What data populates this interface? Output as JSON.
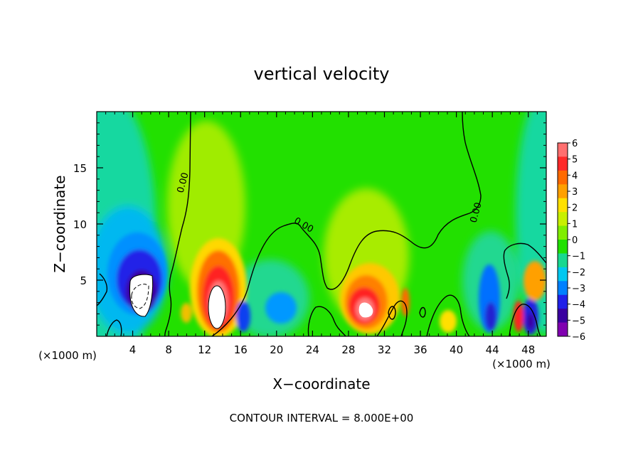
{
  "chart_data": {
    "type": "heatmap",
    "title": "vertical velocity",
    "xlabel": "X−coordinate",
    "ylabel": "Z−coordinate",
    "x_unit": "(×1000 m)",
    "xlim": [
      0,
      50
    ],
    "ylim": [
      0,
      20
    ],
    "x_ticks": [
      4,
      8,
      12,
      16,
      20,
      24,
      28,
      32,
      36,
      40,
      44,
      48
    ],
    "x_tick_labels": [
      "4",
      "8",
      "12",
      "16",
      "20",
      "24",
      "28",
      "32",
      "36",
      "40",
      "44",
      "48"
    ],
    "y_ticks": [
      5,
      10,
      15
    ],
    "y_tick_labels": [
      "5",
      "10",
      "15"
    ],
    "colorbar": {
      "levels": [
        6,
        5,
        4,
        3,
        2,
        1,
        0,
        -1,
        -2,
        -3,
        -4,
        -5,
        -6
      ],
      "labels": [
        "6",
        "5",
        "4",
        "3",
        "2",
        "1",
        "0",
        "−1",
        "−2",
        "−3",
        "−4",
        "−5",
        "−6"
      ],
      "colors": [
        "#ff6f6f",
        "#ff2a2a",
        "#ff6a00",
        "#ffa000",
        "#ffe000",
        "#c8f000",
        "#80ee00",
        "#20e000",
        "#18d890",
        "#00c8f0",
        "#0080ff",
        "#2020e8",
        "#3a00a0",
        "#8000b0"
      ]
    },
    "contour_labels": [
      "0.00",
      "0.00",
      "0.00"
    ],
    "contour_interval_text": "CONTOUR INTERVAL = 8.000E+00",
    "features": [
      {
        "kind": "downdraft",
        "x": 4.8,
        "z": 3.5,
        "value": -6,
        "rx": 2.6,
        "rz": 3.2
      },
      {
        "kind": "updraft",
        "x": 13.2,
        "z": 3.2,
        "value": 6,
        "rx": 2.7,
        "rz": 4.4
      },
      {
        "kind": "updraft",
        "x": 29.8,
        "z": 2.6,
        "value": 6,
        "rx": 2.6,
        "rz": 3.6
      },
      {
        "kind": "downdraft",
        "x": 20.5,
        "z": 2.5,
        "value": -3,
        "rx": 2.2,
        "rz": 2.6
      },
      {
        "kind": "downdraft",
        "x": 43.8,
        "z": 3.0,
        "value": -4,
        "rx": 1.4,
        "rz": 4.0
      },
      {
        "kind": "updraft",
        "x": 46.6,
        "z": 2.0,
        "value": 5,
        "rx": 0.8,
        "rz": 2.2
      },
      {
        "kind": "downdraft",
        "x": 48.2,
        "z": 1.6,
        "value": -5,
        "rx": 0.9,
        "rz": 2.0
      }
    ]
  }
}
